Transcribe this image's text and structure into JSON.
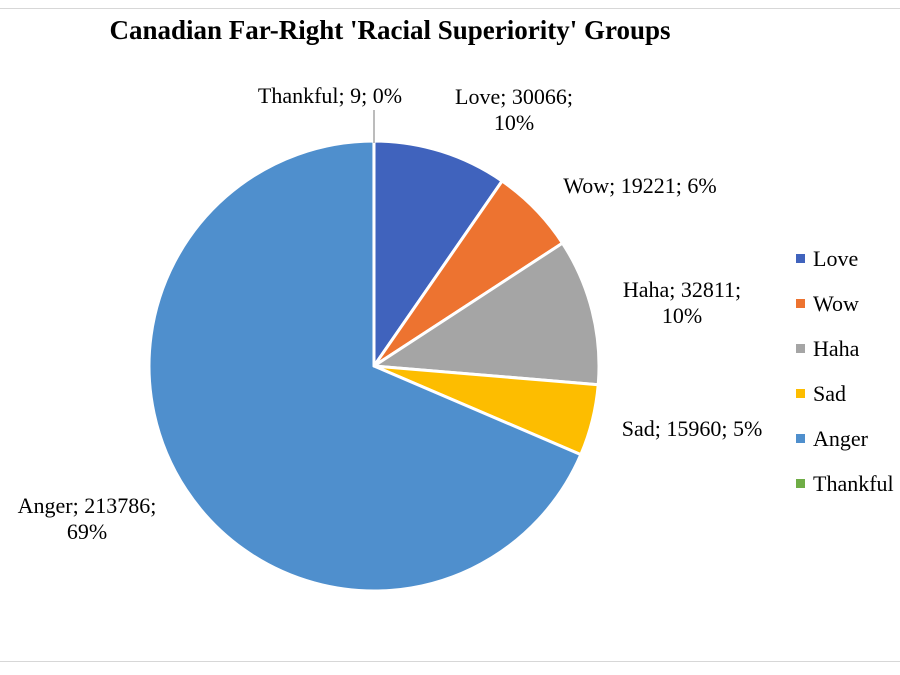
{
  "chart_data": {
    "type": "pie",
    "title": "Canadian Far-Right 'Racial Superiority' Groups",
    "legend_position": "right",
    "start_angle_deg": 0,
    "direction": "clockwise",
    "slices": [
      {
        "name": "Love",
        "value": 30066,
        "percent": "10%",
        "color": "#4063bd",
        "label_lines": [
          "Love; 30066;",
          "10%"
        ]
      },
      {
        "name": "Wow",
        "value": 19221,
        "percent": "6%",
        "color": "#ed7330",
        "label_lines": [
          "Wow; 19221; 6%"
        ]
      },
      {
        "name": "Haha",
        "value": 32811,
        "percent": "10%",
        "color": "#a5a5a5",
        "label_lines": [
          "Haha; 32811;",
          "10%"
        ]
      },
      {
        "name": "Sad",
        "value": 15960,
        "percent": "5%",
        "color": "#fdbd00",
        "label_lines": [
          "Sad; 15960; 5%"
        ]
      },
      {
        "name": "Anger",
        "value": 213786,
        "percent": "69%",
        "color": "#4f8fcd",
        "label_lines": [
          "Anger; 213786;",
          "69%"
        ]
      },
      {
        "name": "Thankful",
        "value": 9,
        "percent": "0%",
        "color": "#6fad46",
        "label_lines": [
          "Thankful; 9; 0%"
        ]
      }
    ]
  }
}
